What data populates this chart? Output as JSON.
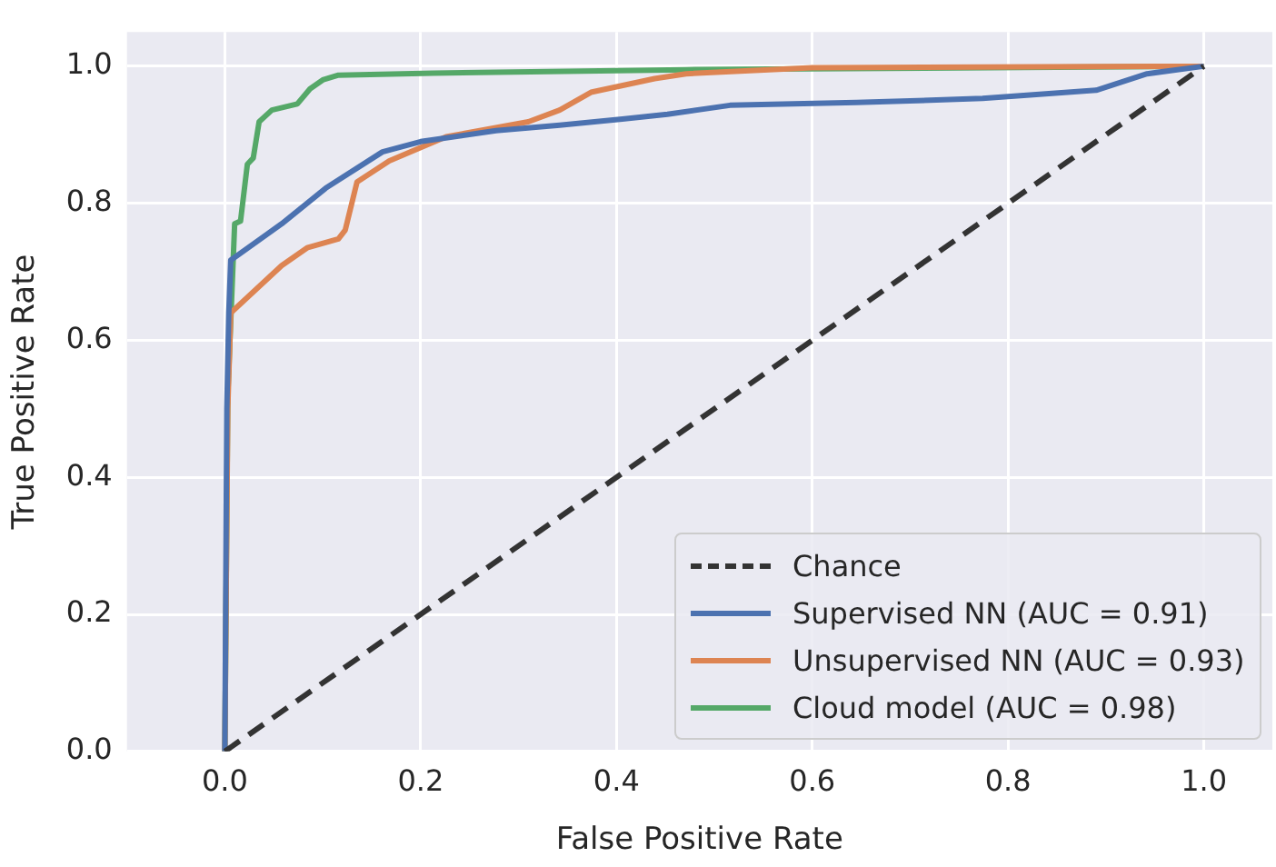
{
  "chart_data": {
    "type": "line",
    "xlabel": "False Positive Rate",
    "ylabel": "True Positive Rate",
    "xlim": [
      -0.1,
      1.07
    ],
    "ylim": [
      0,
      1.05
    ],
    "xticks": [
      {
        "value": 0,
        "label": "0.0"
      },
      {
        "value": 0.2,
        "label": "0.2"
      },
      {
        "value": 0.4,
        "label": "0.4"
      },
      {
        "value": 0.6,
        "label": "0.6"
      },
      {
        "value": 0.8,
        "label": "0.8"
      },
      {
        "value": 1,
        "label": "1.0"
      }
    ],
    "yticks": [
      {
        "value": 0,
        "label": "0.0"
      },
      {
        "value": 0.2,
        "label": "0.2"
      },
      {
        "value": 0.4,
        "label": "0.4"
      },
      {
        "value": 0.6,
        "label": "0.6"
      },
      {
        "value": 0.8,
        "label": "0.8"
      },
      {
        "value": 1,
        "label": "1.0"
      }
    ],
    "grid": true,
    "legend": "bottom right",
    "marker": "none",
    "series": [
      {
        "name": "Chance",
        "color": "#333333",
        "line_style": "dashed",
        "x": [
          0,
          1
        ],
        "values": [
          0,
          1
        ]
      },
      {
        "name": "Supervised NN (AUC = 0.91)",
        "color": "#4c72b0",
        "line_style": "solid",
        "x": [
          0,
          0.002,
          0.004,
          0.006,
          0.058,
          0.103,
          0.161,
          0.2,
          0.277,
          0.342,
          0.406,
          0.452,
          0.516,
          0.645,
          0.774,
          0.89,
          0.942,
          1
        ],
        "values": [
          0,
          0.5,
          0.64,
          0.717,
          0.77,
          0.822,
          0.875,
          0.89,
          0.906,
          0.914,
          0.923,
          0.93,
          0.943,
          0.947,
          0.953,
          0.965,
          0.989,
          1
        ]
      },
      {
        "name": "Unsupervised NN (AUC = 0.93)",
        "color": "#dd8452",
        "line_style": "solid",
        "x": [
          0,
          0.003,
          0.006,
          0.058,
          0.084,
          0.116,
          0.123,
          0.135,
          0.168,
          0.226,
          0.31,
          0.342,
          0.374,
          0.439,
          0.471,
          0.6,
          1
        ],
        "values": [
          0,
          0.5,
          0.64,
          0.709,
          0.735,
          0.748,
          0.761,
          0.831,
          0.862,
          0.897,
          0.919,
          0.936,
          0.962,
          0.982,
          0.989,
          0.998,
          1
        ]
      },
      {
        "name": "Cloud model (AUC = 0.98)",
        "color": "#55a868",
        "line_style": "solid",
        "x": [
          0,
          0.003,
          0.01,
          0.016,
          0.023,
          0.029,
          0.035,
          0.048,
          0.074,
          0.087,
          0.1,
          0.116,
          0.213,
          0.471,
          1
        ],
        "values": [
          0,
          0.52,
          0.77,
          0.774,
          0.857,
          0.866,
          0.919,
          0.936,
          0.945,
          0.967,
          0.98,
          0.987,
          0.99,
          0.995,
          1
        ]
      }
    ]
  }
}
